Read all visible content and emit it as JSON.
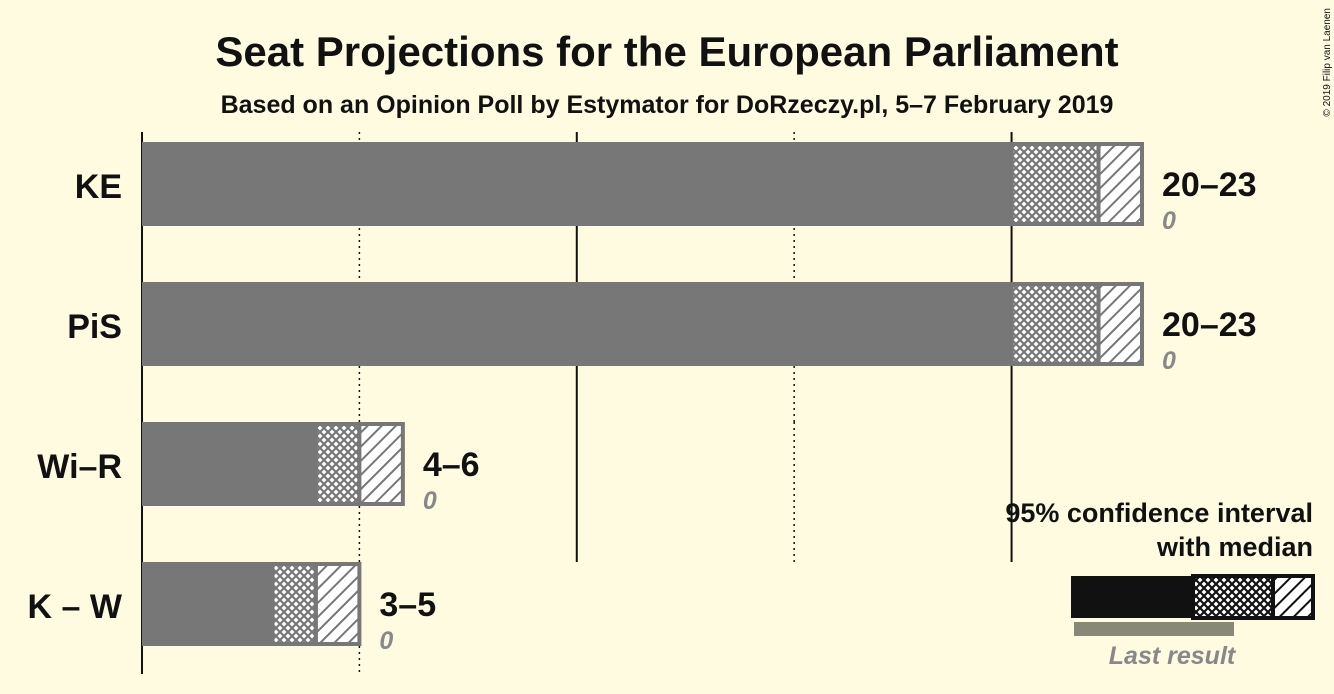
{
  "chart_data": {
    "type": "bar",
    "orientation": "horizontal",
    "title": "Seat Projections for the European Parliament",
    "subtitle": "Based on an Opinion Poll by Estymator for DoRzeczy.pl, 5–7 February 2019",
    "categories": [
      "KE",
      "PiS",
      "Wi–R",
      "K – W"
    ],
    "ci_low": [
      20,
      20,
      4,
      3
    ],
    "median": [
      22,
      22,
      5,
      4
    ],
    "ci_high": [
      23,
      23,
      6,
      5
    ],
    "range_labels": [
      "20–23",
      "20–23",
      "4–6",
      "3–5"
    ],
    "last_result": [
      0,
      0,
      0,
      0
    ],
    "last_result_labels": [
      "0",
      "0",
      "0",
      "0"
    ],
    "xlim": [
      0,
      23
    ],
    "grid": true,
    "legend": {
      "line1": "95% confidence interval",
      "line2": "with median",
      "last": "Last result",
      "position": "bottom-right"
    },
    "copyright": "© 2019 Filip van Laenen",
    "colors": {
      "background": "#fefbe0",
      "bar": "#777777",
      "legend_bar": "#111111",
      "legend_last": "#888877",
      "text": "#111111",
      "muted": "#888888"
    }
  }
}
